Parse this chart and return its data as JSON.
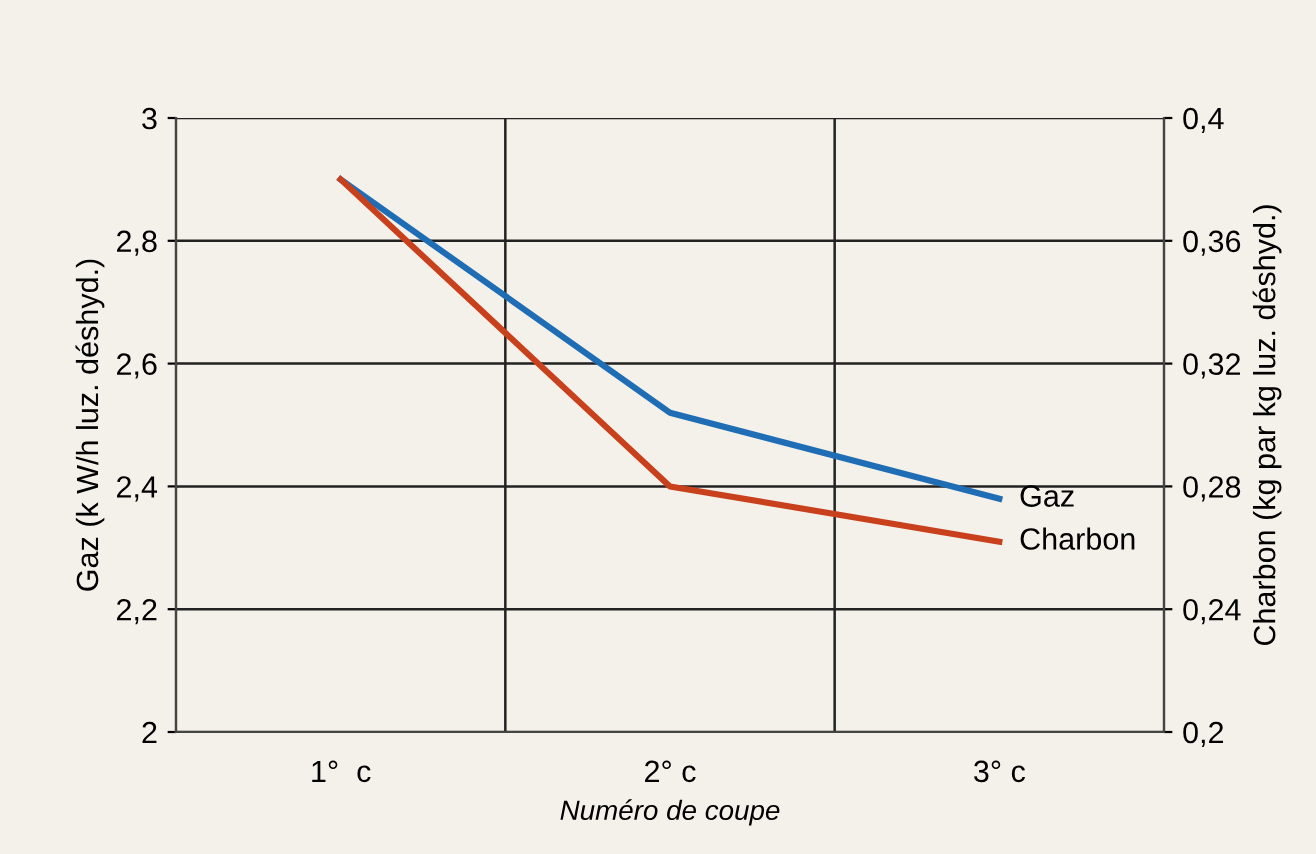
{
  "chart_data": {
    "type": "line",
    "xlabel": "Numéro de coupe",
    "ylabel": "Gaz (k W/h luz. déshyd.)",
    "y2label": "Charbon (kg par kg luz. déshyd.)",
    "categories": [
      "1°  c",
      "2° c",
      "3° c"
    ],
    "series": [
      {
        "name": "Gaz",
        "color": "#1f6db4",
        "values": [
          2.9,
          2.52,
          2.38
        ]
      },
      {
        "name": "Charbon",
        "color": "#c8401c",
        "axis": "y2",
        "values": [
          0.38,
          0.28,
          0.262
        ]
      }
    ],
    "ylim": [
      2,
      3
    ],
    "yticks": [
      {
        "value": 2,
        "label": "2"
      },
      {
        "value": 2.2,
        "label": "2,2"
      },
      {
        "value": 2.4,
        "label": "2,4"
      },
      {
        "value": 2.6,
        "label": "2,6"
      },
      {
        "value": 2.8,
        "label": "2,8"
      },
      {
        "value": 3,
        "label": "3"
      }
    ],
    "y2lim": [
      0.2,
      0.4
    ],
    "y2ticks": [
      {
        "value": 0.2,
        "label": "0,2"
      },
      {
        "value": 0.24,
        "label": "0,24"
      },
      {
        "value": 0.28,
        "label": "0,28"
      },
      {
        "value": 0.32,
        "label": "0,32"
      },
      {
        "value": 0.36,
        "label": "0,36"
      },
      {
        "value": 0.4,
        "label": "0,4"
      }
    ],
    "grid": true,
    "legend": false,
    "marker": "none",
    "line_style": "solid"
  }
}
